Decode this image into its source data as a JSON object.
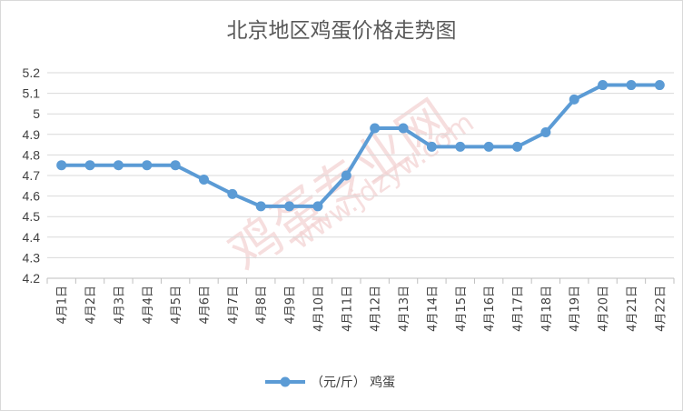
{
  "chart_data": {
    "type": "line",
    "title": "北京地区鸡蛋价格走势图",
    "xlabel": "",
    "ylabel": "",
    "categories": [
      "4月1日",
      "4月2日",
      "4月3日",
      "4月4日",
      "4月5日",
      "4月6日",
      "4月7日",
      "4月8日",
      "4月9日",
      "4月10日",
      "4月11日",
      "4月12日",
      "4月13日",
      "4月14日",
      "4月15日",
      "4月16日",
      "4月17日",
      "4月18日",
      "4月19日",
      "4月20日",
      "4月21日",
      "4月22日"
    ],
    "series": [
      {
        "name": "（元/斤） 鸡蛋",
        "color": "#5b9bd5",
        "values": [
          4.75,
          4.75,
          4.75,
          4.75,
          4.75,
          4.68,
          4.61,
          4.55,
          4.55,
          4.55,
          4.7,
          4.93,
          4.93,
          4.84,
          4.84,
          4.84,
          4.84,
          4.91,
          5.07,
          5.14,
          5.14,
          5.14
        ]
      }
    ],
    "ylim": [
      4.2,
      5.2
    ],
    "yticks": [
      "4.2",
      "4.3",
      "4.4",
      "4.5",
      "4.6",
      "4.7",
      "4.8",
      "4.9",
      "5",
      "5.1",
      "5.2"
    ],
    "grid": true,
    "legend_position": "bottom"
  },
  "watermark": {
    "line1": "鸡蛋专业网",
    "line2": "www.jdzyw.com"
  }
}
